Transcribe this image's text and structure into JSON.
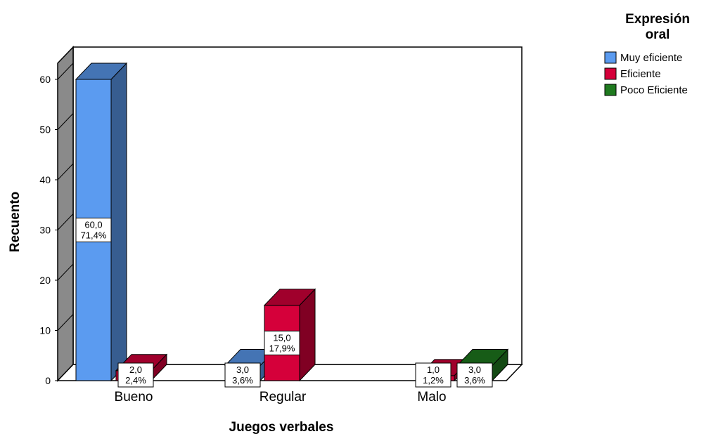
{
  "chart_data": {
    "type": "bar",
    "title": "",
    "xlabel": "Juegos verbales",
    "ylabel": "Recuento",
    "ylim": [
      0,
      65
    ],
    "yticks": [
      0,
      10,
      20,
      30,
      40,
      50,
      60
    ],
    "categories": [
      "Bueno",
      "Regular",
      "Malo"
    ],
    "legend_title_lines": [
      "Expresión",
      "oral"
    ],
    "legend_position": "top-right",
    "grid": false,
    "series": [
      {
        "name": "Muy eficiente",
        "color": "#5b9bf0",
        "values": [
          60,
          3,
          null
        ],
        "labels": [
          [
            "60,0",
            "71,4%"
          ],
          [
            "3,0",
            "3,6%"
          ],
          null
        ]
      },
      {
        "name": "Eficiente",
        "color": "#d5003a",
        "values": [
          2,
          15,
          1
        ],
        "labels": [
          [
            "2,0",
            "2,4%"
          ],
          [
            "15,0",
            "17,9%"
          ],
          [
            "1,0",
            "1,2%"
          ]
        ]
      },
      {
        "name": "Poco Eficiente",
        "color": "#1f7a1f",
        "values": [
          null,
          null,
          3
        ],
        "labels": [
          null,
          null,
          [
            "3,0",
            "3,6%"
          ]
        ]
      }
    ]
  }
}
